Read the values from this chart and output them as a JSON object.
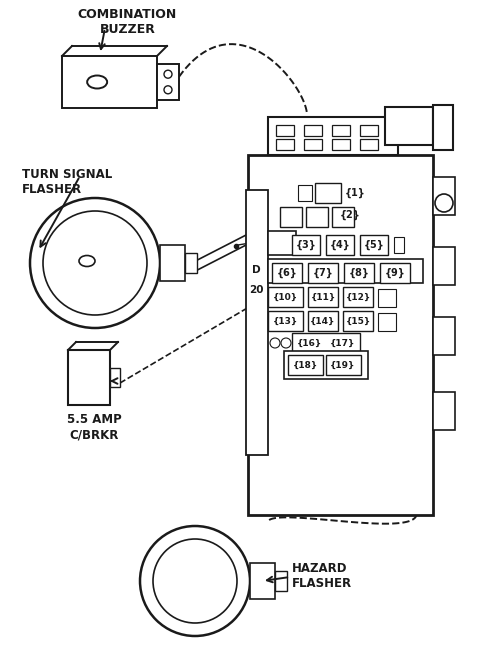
{
  "bg_color": "#ffffff",
  "line_color": "#1a1a1a",
  "labels": {
    "combination_buzzer": "COMBINATION\nBUZZER",
    "turn_signal_flasher": "TURN SIGNAL\nFLASHER",
    "amp_cbrkr": "5.5 AMP\nC/BRKR",
    "hazard_flasher": "HAZARD\nFLASHER"
  },
  "number_20": "20",
  "fuse_rows": {
    "r1": [
      "1"
    ],
    "r2": [
      "2"
    ],
    "r3": [
      "3",
      "4",
      "5"
    ],
    "r4": [
      "6",
      "7",
      "8",
      "9"
    ],
    "r5": [
      "10",
      "11",
      "12"
    ],
    "r6": [
      "13",
      "14",
      "15"
    ],
    "r7": [
      "16",
      "17"
    ],
    "r8": [
      "18",
      "19"
    ]
  }
}
